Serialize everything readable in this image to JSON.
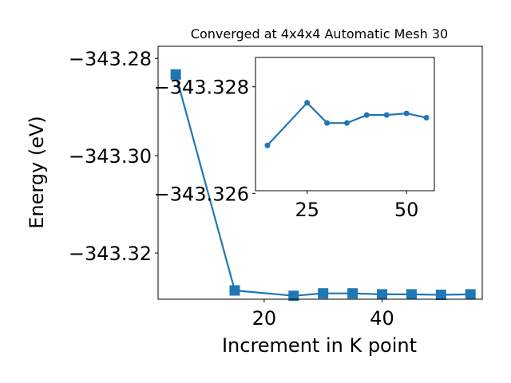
{
  "chart_data": [
    {
      "type": "line",
      "title": "Converged at 4x4x4 Automatic Mesh 30",
      "xlabel": "Increment in K point",
      "ylabel": "Energy (eV)",
      "xlim": [
        2,
        57
      ],
      "ylim": [
        -343.3295,
        -343.2775
      ],
      "x_ticks": [
        20,
        40
      ],
      "x_tick_labels": [
        "20",
        "40"
      ],
      "y_ticks": [
        -343.28,
        -343.3,
        -343.32
      ],
      "y_tick_labels": [
        "−343.28",
        "−343.30",
        "−343.32"
      ],
      "marker": "square",
      "color": "#1f77b4",
      "x": [
        5,
        15,
        25,
        30,
        35,
        40,
        45,
        50,
        55
      ],
      "y": [
        -343.2833,
        -343.3277,
        -343.3288,
        -343.3283,
        -343.3283,
        -343.3285,
        -343.3285,
        -343.3286,
        -343.3285
      ],
      "grid": false,
      "legend": "none"
    },
    {
      "type": "line",
      "title": "",
      "xlabel": "",
      "ylabel": "",
      "xlim": [
        12,
        57
      ],
      "ylim": [
        -343.32605,
        -343.32855
      ],
      "x_ticks": [
        25,
        50
      ],
      "x_tick_labels": [
        "25",
        "50"
      ],
      "y_ticks": [
        -343.326,
        -343.328
      ],
      "y_tick_labels": [
        "−343.326",
        "−343.328"
      ],
      "marker": "circle",
      "color": "#1f77b4",
      "x": [
        15,
        25,
        30,
        35,
        40,
        45,
        50,
        55
      ],
      "y": [
        -343.3269,
        -343.3277,
        -343.32732,
        -343.32732,
        -343.32747,
        -343.32747,
        -343.3275,
        -343.32742
      ],
      "grid": false,
      "legend": "none"
    }
  ]
}
